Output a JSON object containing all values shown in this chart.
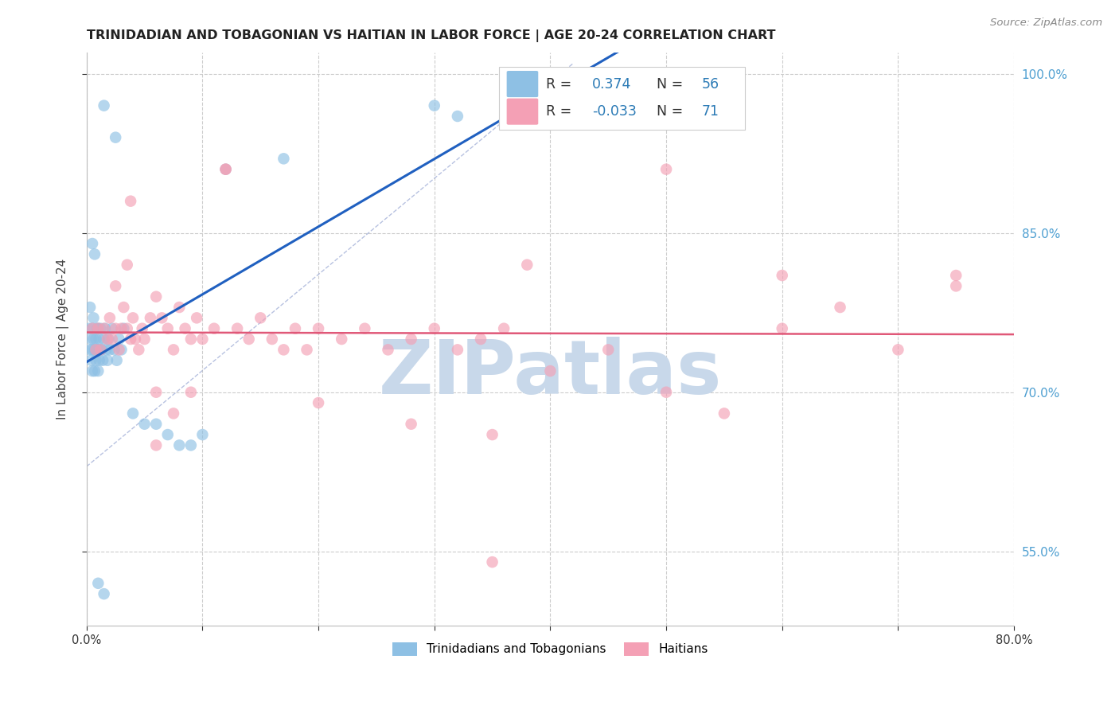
{
  "title": "TRINIDADIAN AND TOBAGONIAN VS HAITIAN IN LABOR FORCE | AGE 20-24 CORRELATION CHART",
  "source": "Source: ZipAtlas.com",
  "ylabel": "In Labor Force | Age 20-24",
  "xmin": 0.0,
  "xmax": 0.8,
  "ymin": 0.48,
  "ymax": 1.02,
  "yticks": [
    0.55,
    0.7,
    0.85,
    1.0
  ],
  "ytick_labels": [
    "55.0%",
    "70.0%",
    "85.0%",
    "100.0%"
  ],
  "xticks": [
    0.0,
    0.1,
    0.2,
    0.3,
    0.4,
    0.5,
    0.6,
    0.7,
    0.8
  ],
  "xtick_labels": [
    "0.0%",
    "",
    "",
    "",
    "",
    "",
    "",
    "",
    "80.0%"
  ],
  "blue_color": "#8EC0E4",
  "pink_color": "#F4A0B5",
  "blue_R": "0.374",
  "blue_N": "56",
  "pink_R": "-0.033",
  "pink_N": "71",
  "watermark": "ZIPatlas",
  "watermark_color": "#C8D8EA",
  "legend_label_blue": "Trinidadians and Tobagonians",
  "legend_label_pink": "Haitians",
  "background_color": "#FFFFFF",
  "grid_color": "#CCCCCC",
  "title_color": "#222222",
  "axis_label_color": "#444444",
  "right_ytick_color": "#4E9FD1",
  "legend_text_color": "#333333",
  "legend_value_color": "#2C7BB6",
  "blue_line_color": "#2060C0",
  "pink_line_color": "#E05878",
  "diag_line_color": "#AAAACC"
}
